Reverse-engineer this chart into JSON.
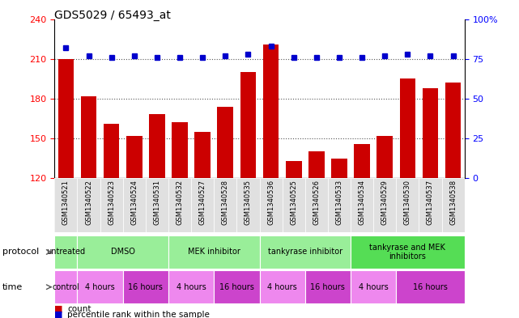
{
  "title": "GDS5029 / 65493_at",
  "samples": [
    "GSM1340521",
    "GSM1340522",
    "GSM1340523",
    "GSM1340524",
    "GSM1340531",
    "GSM1340532",
    "GSM1340527",
    "GSM1340528",
    "GSM1340535",
    "GSM1340536",
    "GSM1340525",
    "GSM1340526",
    "GSM1340533",
    "GSM1340534",
    "GSM1340529",
    "GSM1340530",
    "GSM1340537",
    "GSM1340538"
  ],
  "counts": [
    210,
    182,
    161,
    152,
    168,
    162,
    155,
    174,
    200,
    221,
    133,
    140,
    135,
    146,
    152,
    195,
    188,
    192
  ],
  "percentiles": [
    82,
    77,
    76,
    77,
    76,
    76,
    76,
    77,
    78,
    83,
    76,
    76,
    76,
    76,
    77,
    78,
    77,
    77
  ],
  "ylim_left": [
    120,
    240
  ],
  "ylim_right": [
    0,
    100
  ],
  "yticks_left": [
    120,
    150,
    180,
    210,
    240
  ],
  "yticks_right": [
    0,
    25,
    50,
    75,
    100
  ],
  "bar_color": "#cc0000",
  "dot_color": "#0000cc",
  "grid_color": "#555555",
  "bg_color": "#ffffff",
  "protocol_groups": [
    {
      "label": "untreated",
      "start": 0,
      "end": 1,
      "color": "#99ee99"
    },
    {
      "label": "DMSO",
      "start": 1,
      "end": 5,
      "color": "#99ee99"
    },
    {
      "label": "MEK inhibitor",
      "start": 5,
      "end": 9,
      "color": "#99ee99"
    },
    {
      "label": "tankyrase inhibitor",
      "start": 9,
      "end": 13,
      "color": "#99ee99"
    },
    {
      "label": "tankyrase and MEK\ninhibitors",
      "start": 13,
      "end": 18,
      "color": "#55dd55"
    }
  ],
  "time_groups": [
    {
      "label": "control",
      "start": 0,
      "end": 1,
      "color": "#ee88ee"
    },
    {
      "label": "4 hours",
      "start": 1,
      "end": 3,
      "color": "#ee88ee"
    },
    {
      "label": "16 hours",
      "start": 3,
      "end": 5,
      "color": "#cc44cc"
    },
    {
      "label": "4 hours",
      "start": 5,
      "end": 7,
      "color": "#ee88ee"
    },
    {
      "label": "16 hours",
      "start": 7,
      "end": 9,
      "color": "#cc44cc"
    },
    {
      "label": "4 hours",
      "start": 9,
      "end": 11,
      "color": "#ee88ee"
    },
    {
      "label": "16 hours",
      "start": 11,
      "end": 13,
      "color": "#cc44cc"
    },
    {
      "label": "4 hours",
      "start": 13,
      "end": 15,
      "color": "#ee88ee"
    },
    {
      "label": "16 hours",
      "start": 15,
      "end": 18,
      "color": "#cc44cc"
    }
  ]
}
